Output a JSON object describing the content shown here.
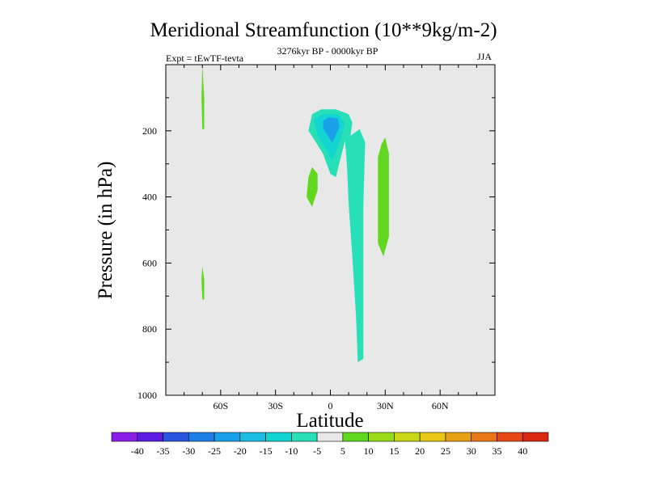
{
  "chart_data": {
    "type": "contour",
    "title": "Meridional Streamfunction (10**9kg/m-2)",
    "subtitle": "3276kyr BP - 0000kyr BP",
    "left_label": "Expt = tEwTF-tevta",
    "right_label": "JJA",
    "xlabel": "Latitude",
    "ylabel": "Pressure (in hPa)",
    "xlim": [
      -90,
      90
    ],
    "ylim": [
      1000,
      0
    ],
    "x_ticks": [
      -60,
      -30,
      0,
      30,
      60
    ],
    "x_tick_labels": [
      "60S",
      "30S",
      "0",
      "30N",
      "60N"
    ],
    "y_ticks": [
      200,
      400,
      600,
      800,
      1000
    ],
    "y_tick_labels": [
      "200",
      "400",
      "600",
      "800",
      "1000"
    ],
    "colorbar": {
      "levels": [
        "-40",
        "-35",
        "-30",
        "-25",
        "-20",
        "-15",
        "-10",
        "-5",
        "5",
        "10",
        "15",
        "20",
        "25",
        "30",
        "35",
        "40"
      ],
      "colors": [
        "#8a20e8",
        "#5a1de0",
        "#2a55e0",
        "#1e7ee8",
        "#1aa0e8",
        "#1bbde0",
        "#12d4d0",
        "#28e0b8",
        "#e8e8e8",
        "#60d820",
        "#98dc18",
        "#c8d814",
        "#e8c814",
        "#e8a014",
        "#e87814",
        "#e84814",
        "#d82810"
      ]
    },
    "contours": [
      {
        "value": "5 to 10",
        "color": "#60d820",
        "points": [
          [
            -70,
            0
          ],
          [
            -69,
            100
          ],
          [
            -69,
            195
          ],
          [
            -70,
            195
          ],
          [
            -70.5,
            100
          ]
        ]
      },
      {
        "value": "5 to 10",
        "color": "#60d820",
        "points": [
          [
            -70,
            610
          ],
          [
            -69,
            650
          ],
          [
            -69,
            710
          ],
          [
            -70,
            710
          ],
          [
            -70.5,
            650
          ]
        ]
      },
      {
        "value": "5 to 10",
        "color": "#60d820",
        "points": [
          [
            -10,
            310
          ],
          [
            -7,
            330
          ],
          [
            -7,
            380
          ],
          [
            -10,
            430
          ],
          [
            -13,
            400
          ],
          [
            -12,
            340
          ]
        ]
      },
      {
        "value": "5 to 10",
        "color": "#60d820",
        "points": [
          [
            30,
            220
          ],
          [
            32,
            270
          ],
          [
            32,
            520
          ],
          [
            29,
            580
          ],
          [
            26,
            540
          ],
          [
            26,
            280
          ],
          [
            28,
            240
          ]
        ]
      },
      {
        "value": "-10 to -5",
        "color": "#28e0b8",
        "points": [
          [
            -12,
            200
          ],
          [
            -10,
            150
          ],
          [
            -5,
            135
          ],
          [
            3,
            135
          ],
          [
            10,
            150
          ],
          [
            12,
            175
          ],
          [
            11,
            215
          ],
          [
            16,
            195
          ],
          [
            19,
            235
          ],
          [
            18,
            430
          ],
          [
            18,
            890
          ],
          [
            15,
            900
          ],
          [
            14,
            760
          ],
          [
            12,
            580
          ],
          [
            10,
            420
          ],
          [
            9,
            300
          ],
          [
            8,
            230
          ],
          [
            3,
            340
          ],
          [
            0,
            330
          ],
          [
            -4,
            270
          ],
          [
            -9,
            225
          ]
        ]
      },
      {
        "value": "-15 to -10",
        "color": "#12d4d0",
        "points": [
          [
            -9,
            165
          ],
          [
            -4,
            150
          ],
          [
            4,
            150
          ],
          [
            8,
            175
          ],
          [
            6,
            220
          ],
          [
            1,
            290
          ],
          [
            -3,
            250
          ],
          [
            -7,
            215
          ]
        ]
      },
      {
        "value": "-20 to -15",
        "color": "#1aa0e8",
        "points": [
          [
            -4,
            170
          ],
          [
            -1,
            160
          ],
          [
            4,
            162
          ],
          [
            5,
            188
          ],
          [
            1,
            235
          ],
          [
            -2,
            210
          ],
          [
            -4,
            192
          ]
        ]
      }
    ]
  }
}
